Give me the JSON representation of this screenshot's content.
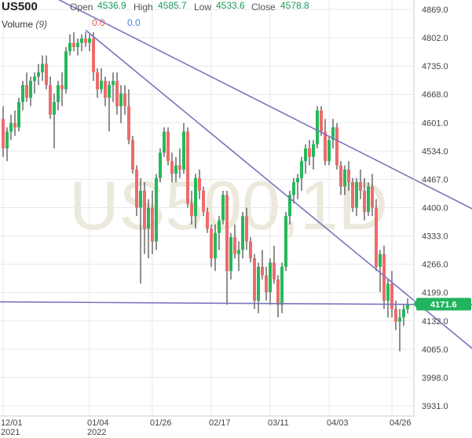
{
  "header": {
    "symbol": "US500",
    "open_label": "Open",
    "open_value": "4536.9",
    "high_label": "High",
    "high_value": "4585.7",
    "low_label": "Low",
    "low_value": "4533.6",
    "close_label": "Close",
    "close_value": "4578.8",
    "volume_label": "Volume",
    "volume_param": "(9)",
    "volume_value_1": "0.0",
    "volume_value_2": "0.0"
  },
  "watermark": "US500,1D",
  "last_price": "4171.6",
  "colors": {
    "up": "#26b85a",
    "down": "#ef6b6b",
    "trendline": "#7a74bf",
    "last_price_bg": "#22b35e",
    "grid": "#e8e8e8"
  },
  "chart_data": {
    "type": "candlestick",
    "ylim": [
      3900,
      4900
    ],
    "y_ticks": [
      "4869.0",
      "4802.0",
      "4735.0",
      "4668.0",
      "4601.0",
      "4534.0",
      "4467.0",
      "4400.0",
      "4333.0",
      "4266.0",
      "4199.0",
      "4132.0",
      "4065.0",
      "3998.0",
      "3931.0"
    ],
    "x_ticks": [
      {
        "label": "12/01",
        "sub": "2021",
        "index": 0
      },
      {
        "label": "01/04",
        "sub": "2022",
        "index": 22
      },
      {
        "label": "01/26",
        "sub": "",
        "index": 38
      },
      {
        "label": "02/17",
        "sub": "",
        "index": 53
      },
      {
        "label": "03/11",
        "sub": "",
        "index": 68
      },
      {
        "label": "04/03",
        "sub": "",
        "index": 83
      },
      {
        "label": "04/26",
        "sub": "",
        "index": 99
      }
    ],
    "candles": [
      [
        4610,
        4640,
        4520,
        4540
      ],
      [
        4540,
        4590,
        4510,
        4580
      ],
      [
        4580,
        4620,
        4560,
        4600
      ],
      [
        4600,
        4630,
        4570,
        4590
      ],
      [
        4590,
        4660,
        4580,
        4650
      ],
      [
        4650,
        4700,
        4630,
        4690
      ],
      [
        4690,
        4720,
        4650,
        4660
      ],
      [
        4660,
        4710,
        4640,
        4700
      ],
      [
        4700,
        4720,
        4670,
        4710
      ],
      [
        4710,
        4740,
        4690,
        4720
      ],
      [
        4720,
        4760,
        4700,
        4740
      ],
      [
        4740,
        4760,
        4680,
        4690
      ],
      [
        4690,
        4710,
        4610,
        4620
      ],
      [
        4620,
        4670,
        4540,
        4650
      ],
      [
        4650,
        4700,
        4630,
        4690
      ],
      [
        4690,
        4720,
        4640,
        4680
      ],
      [
        4680,
        4780,
        4670,
        4770
      ],
      [
        4770,
        4810,
        4760,
        4790
      ],
      [
        4790,
        4815,
        4770,
        4780
      ],
      [
        4780,
        4800,
        4760,
        4790
      ],
      [
        4790,
        4810,
        4770,
        4800
      ],
      [
        4800,
        4815,
        4780,
        4790
      ],
      [
        4790,
        4810,
        4770,
        4800
      ],
      [
        4800,
        4815,
        4700,
        4720
      ],
      [
        4720,
        4730,
        4660,
        4680
      ],
      [
        4680,
        4730,
        4670,
        4700
      ],
      [
        4700,
        4710,
        4640,
        4660
      ],
      [
        4660,
        4700,
        4580,
        4690
      ],
      [
        4690,
        4720,
        4650,
        4700
      ],
      [
        4700,
        4720,
        4620,
        4640
      ],
      [
        4640,
        4690,
        4600,
        4670
      ],
      [
        4670,
        4690,
        4620,
        4640
      ],
      [
        4640,
        4680,
        4550,
        4560
      ],
      [
        4560,
        4570,
        4480,
        4490
      ],
      [
        4490,
        4500,
        4380,
        4400
      ],
      [
        4400,
        4470,
        4220,
        4440
      ],
      [
        4440,
        4460,
        4290,
        4350
      ],
      [
        4350,
        4420,
        4280,
        4400
      ],
      [
        4400,
        4440,
        4290,
        4320
      ],
      [
        4320,
        4480,
        4300,
        4470
      ],
      [
        4470,
        4540,
        4460,
        4530
      ],
      [
        4530,
        4590,
        4520,
        4580
      ],
      [
        4580,
        4590,
        4500,
        4510
      ],
      [
        4510,
        4530,
        4460,
        4480
      ],
      [
        4480,
        4520,
        4460,
        4500
      ],
      [
        4500,
        4540,
        4470,
        4490
      ],
      [
        4490,
        4600,
        4480,
        4580
      ],
      [
        4580,
        4590,
        4400,
        4410
      ],
      [
        4410,
        4440,
        4360,
        4380
      ],
      [
        4380,
        4480,
        4350,
        4470
      ],
      [
        4470,
        4490,
        4420,
        4440
      ],
      [
        4440,
        4450,
        4380,
        4390
      ],
      [
        4390,
        4400,
        4340,
        4350
      ],
      [
        4350,
        4360,
        4260,
        4280
      ],
      [
        4280,
        4360,
        4250,
        4340
      ],
      [
        4340,
        4380,
        4300,
        4370
      ],
      [
        4370,
        4440,
        4360,
        4430
      ],
      [
        4430,
        4440,
        4170,
        4250
      ],
      [
        4250,
        4340,
        4230,
        4330
      ],
      [
        4330,
        4360,
        4280,
        4290
      ],
      [
        4290,
        4320,
        4250,
        4300
      ],
      [
        4300,
        4390,
        4280,
        4380
      ],
      [
        4380,
        4400,
        4300,
        4320
      ],
      [
        4320,
        4330,
        4270,
        4280
      ],
      [
        4280,
        4290,
        4160,
        4180
      ],
      [
        4180,
        4270,
        4150,
        4260
      ],
      [
        4260,
        4300,
        4230,
        4240
      ],
      [
        4240,
        4260,
        4180,
        4200
      ],
      [
        4200,
        4280,
        4170,
        4270
      ],
      [
        4270,
        4310,
        4220,
        4230
      ],
      [
        4230,
        4240,
        4140,
        4170
      ],
      [
        4170,
        4270,
        4150,
        4260
      ],
      [
        4260,
        4390,
        4250,
        4380
      ],
      [
        4380,
        4440,
        4360,
        4430
      ],
      [
        4430,
        4470,
        4410,
        4460
      ],
      [
        4460,
        4480,
        4420,
        4470
      ],
      [
        4470,
        4520,
        4440,
        4510
      ],
      [
        4510,
        4550,
        4480,
        4540
      ],
      [
        4540,
        4560,
        4500,
        4520
      ],
      [
        4520,
        4560,
        4490,
        4550
      ],
      [
        4550,
        4640,
        4540,
        4630
      ],
      [
        4630,
        4640,
        4570,
        4580
      ],
      [
        4580,
        4610,
        4500,
        4510
      ],
      [
        4510,
        4570,
        4500,
        4560
      ],
      [
        4560,
        4610,
        4540,
        4590
      ],
      [
        4590,
        4600,
        4490,
        4500
      ],
      [
        4500,
        4510,
        4430,
        4450
      ],
      [
        4450,
        4500,
        4430,
        4490
      ],
      [
        4490,
        4510,
        4440,
        4460
      ],
      [
        4460,
        4470,
        4390,
        4400
      ],
      [
        4400,
        4470,
        4380,
        4460
      ],
      [
        4460,
        4490,
        4420,
        4440
      ],
      [
        4440,
        4470,
        4370,
        4390
      ],
      [
        4390,
        4460,
        4380,
        4450
      ],
      [
        4450,
        4480,
        4380,
        4400
      ],
      [
        4400,
        4420,
        4250,
        4260
      ],
      [
        4260,
        4300,
        4200,
        4290
      ],
      [
        4290,
        4310,
        4160,
        4180
      ],
      [
        4180,
        4230,
        4140,
        4220
      ],
      [
        4220,
        4250,
        4140,
        4160
      ],
      [
        4160,
        4180,
        4110,
        4130
      ],
      [
        4130,
        4160,
        4060,
        4140
      ],
      [
        4140,
        4170,
        4120,
        4160
      ],
      [
        4160,
        4185,
        4150,
        4172
      ]
    ],
    "trendlines": [
      {
        "from": [
          -2,
          4968
        ],
        "to": [
          121,
          4390
        ]
      },
      {
        "from": [
          21,
          4820
        ],
        "to": [
          121,
          4055
        ]
      },
      {
        "from": [
          -2,
          4177
        ],
        "to": [
          121,
          4170
        ]
      }
    ]
  }
}
